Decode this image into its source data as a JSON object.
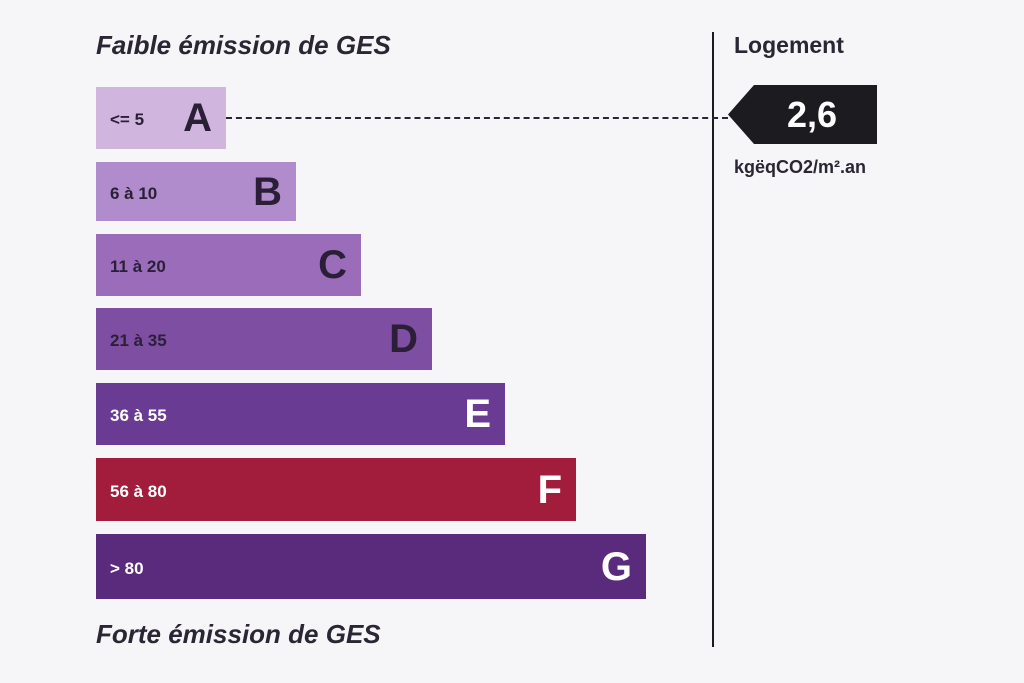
{
  "headings": {
    "top": "Faible émission de GES",
    "bottom": "Forte émission de GES"
  },
  "panel": {
    "title": "Logement",
    "value": "2,6",
    "unit": "kgëqCO2/m².an"
  },
  "chart_data": {
    "type": "bar",
    "title": "",
    "orientation": "horizontal",
    "categories": [
      "A",
      "B",
      "C",
      "D",
      "E",
      "F",
      "G"
    ],
    "ranges": [
      "<= 5",
      "6 à 10",
      "11 à 20",
      "21 à 35",
      "36 à 55",
      "56 à 80",
      "> 80"
    ],
    "values": [
      1,
      2,
      3,
      4,
      5,
      6,
      7
    ],
    "colors": [
      "#d0b6df",
      "#b18ccd",
      "#9a6cba",
      "#7e4ea3",
      "#6a3b92",
      "#a21c3c",
      "#5a2a7c"
    ],
    "text_colors": [
      "#2a1f36",
      "#2a1f36",
      "#2a1f36",
      "#2a1f36",
      "#ffffff",
      "#ffffff",
      "#ffffff"
    ],
    "marker": {
      "value": 2.6,
      "class": "A",
      "label": "2,6"
    }
  }
}
